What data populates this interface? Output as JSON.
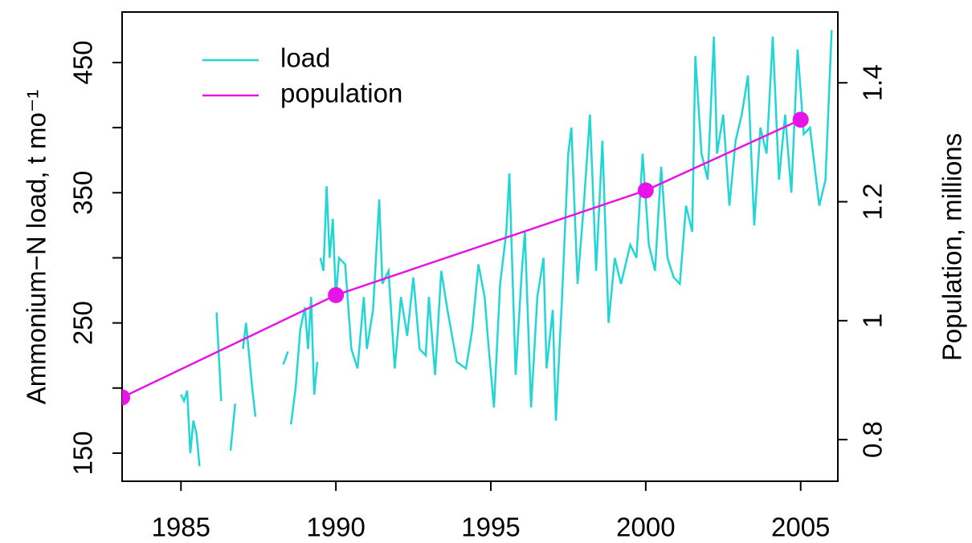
{
  "chart_data": {
    "type": "line",
    "y_label": "Ammonium−N load,  t mo⁻¹",
    "y2_label": "Population, millions",
    "xlim": [
      1983.1,
      2006.2
    ],
    "xticks": [
      1985,
      1990,
      1995,
      2000,
      2005
    ],
    "ylim": [
      128.4,
      488.8
    ],
    "yticks": [
      150,
      {
        "value": 200,
        "label": null
      },
      250,
      {
        "value": 300,
        "label": null
      },
      350,
      {
        "value": 400,
        "label": null
      },
      450
    ],
    "y2lim": [
      0.73,
      1.519
    ],
    "y2ticks": [
      0.8,
      1.0,
      1.2,
      1.4
    ],
    "grid": false,
    "legend": "top-left",
    "series": [
      {
        "name": "load",
        "color": "#22d6d6",
        "x": [
          1985.0,
          1985.1,
          1985.2,
          1985.3,
          1985.4,
          1985.5,
          1985.6,
          1985.8,
          1986.15,
          1986.3,
          1986.45,
          1986.6,
          1986.75,
          1986.9,
          1987.0,
          1987.1,
          1987.3,
          1987.4,
          1988.0,
          1988.3,
          1988.45,
          1988.5,
          1988.55,
          1988.7,
          1988.85,
          1989.0,
          1989.1,
          1989.2,
          1989.3,
          1989.4,
          1989.45,
          1989.5,
          1989.6,
          1989.7,
          1989.8,
          1989.9,
          1990.0,
          1990.1,
          1990.3,
          1990.5,
          1990.7,
          1990.9,
          1991.0,
          1991.2,
          1991.4,
          1991.5,
          1991.7,
          1991.9,
          1992.1,
          1992.3,
          1992.5,
          1992.7,
          1992.9,
          1993.0,
          1993.2,
          1993.4,
          1993.6,
          1993.9,
          1994.2,
          1994.4,
          1994.6,
          1994.8,
          1994.9,
          1995.1,
          1995.3,
          1995.5,
          1995.6,
          1995.8,
          1996.0,
          1996.1,
          1996.3,
          1996.5,
          1996.7,
          1996.8,
          1997.0,
          1997.1,
          1997.3,
          1997.5,
          1997.6,
          1997.8,
          1998.0,
          1998.2,
          1998.4,
          1998.6,
          1998.8,
          1999.0,
          1999.2,
          1999.5,
          1999.7,
          1999.9,
          2000.1,
          2000.3,
          2000.5,
          2000.7,
          2000.9,
          2001.1,
          2001.3,
          2001.5,
          2001.6,
          2001.8,
          2002.0,
          2002.2,
          2002.3,
          2002.5,
          2002.7,
          2002.9,
          2003.1,
          2003.3,
          2003.5,
          2003.7,
          2003.9,
          2004.1,
          2004.3,
          2004.5,
          2004.7,
          2004.9,
          2005.1,
          2005.3,
          2005.6,
          2005.8,
          2006.0
        ],
        "values": [
          195,
          190,
          198,
          150,
          175,
          165,
          140,
          null,
          258,
          190,
          null,
          152,
          188,
          null,
          230,
          250,
          200,
          178,
          null,
          218,
          228,
          null,
          172,
          200,
          245,
          262,
          230,
          270,
          195,
          220,
          null,
          300,
          290,
          355,
          300,
          330,
          270,
          300,
          295,
          230,
          215,
          270,
          230,
          260,
          345,
          280,
          290,
          215,
          270,
          240,
          285,
          230,
          225,
          270,
          210,
          290,
          260,
          220,
          215,
          245,
          295,
          270,
          240,
          185,
          280,
          320,
          365,
          210,
          290,
          320,
          185,
          270,
          300,
          215,
          260,
          175,
          270,
          380,
          400,
          280,
          340,
          410,
          290,
          390,
          250,
          300,
          280,
          310,
          300,
          380,
          310,
          290,
          370,
          300,
          285,
          280,
          340,
          320,
          455,
          380,
          360,
          470,
          380,
          410,
          340,
          390,
          410,
          440,
          325,
          400,
          380,
          470,
          360,
          410,
          350,
          460,
          395,
          400,
          340,
          360,
          475
        ]
      },
      {
        "name": "population",
        "color": "#e614e6",
        "axis": "y2",
        "x": [
          1983.1,
          1990,
          2000,
          2005
        ],
        "values": [
          0.871,
          1.043,
          1.219,
          1.338
        ]
      }
    ]
  }
}
